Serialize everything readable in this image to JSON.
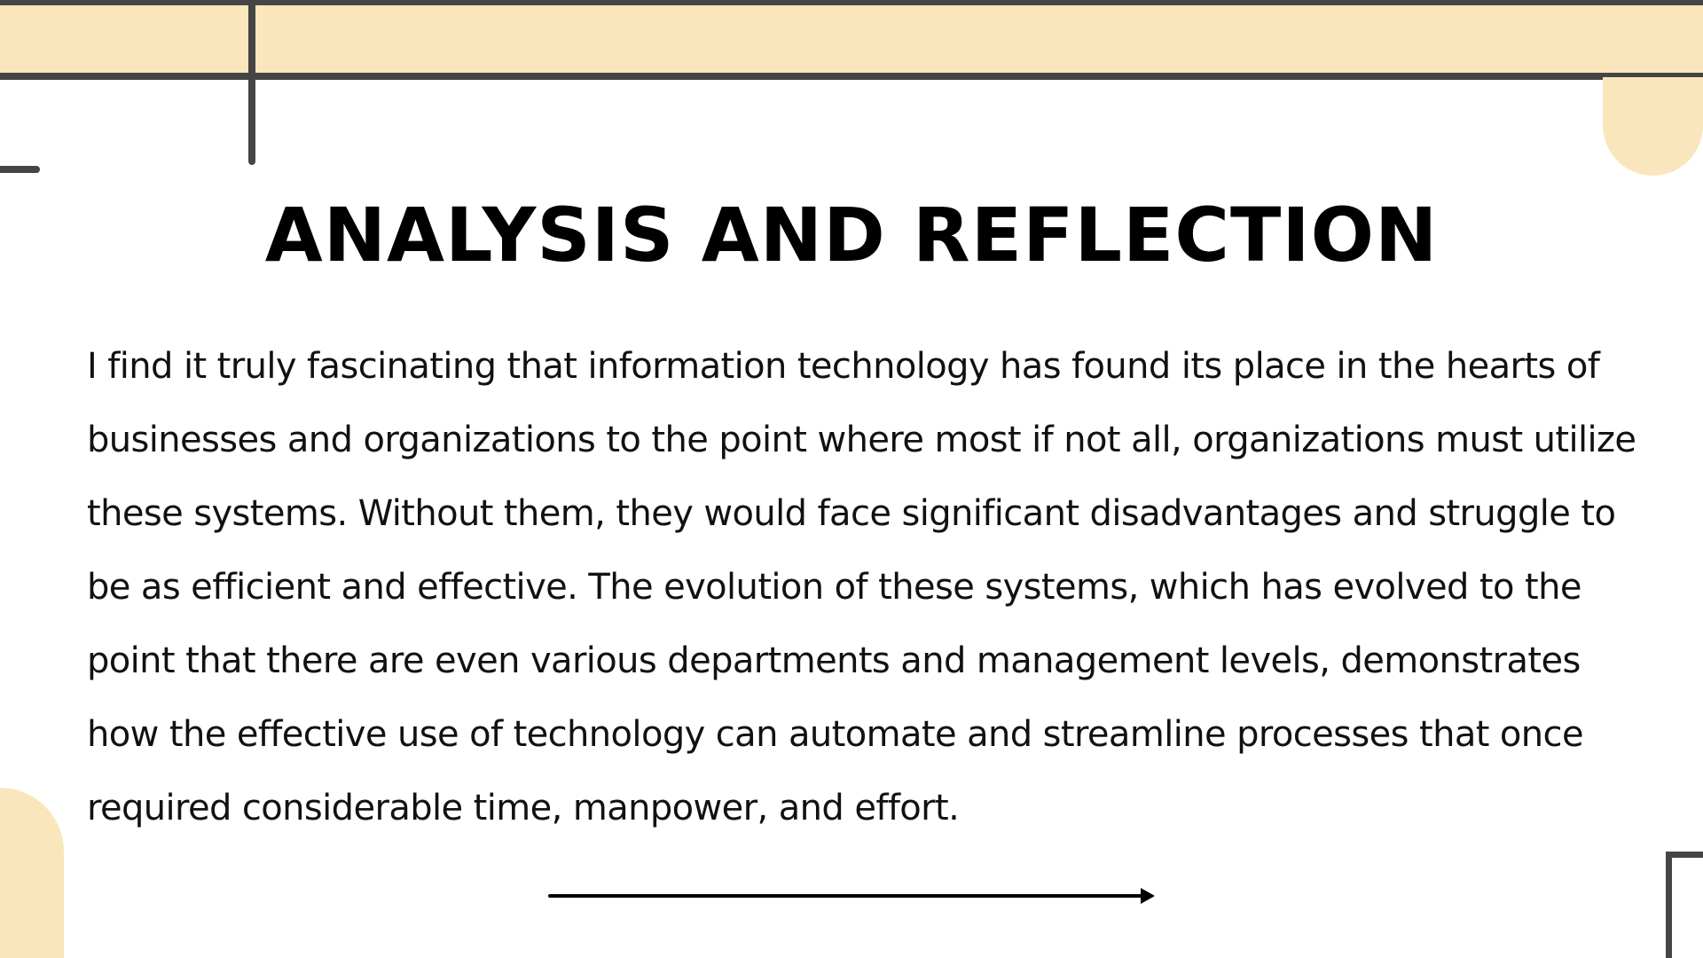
{
  "slide": {
    "title": "ANALYSIS AND REFLECTION",
    "body": "I find it truly fascinating that information technology has found its place in the hearts of businesses and organizations to the point where most if not all, organizations must utilize these systems. Without them, they would face significant disadvantages and struggle to be as efficient and effective. The evolution of these systems, which has evolved to the point that there are even various departments and management levels, demonstrates how the effective use of technology can automate and streamline processes that once required considerable time, manpower, and effort."
  },
  "colors": {
    "accent": "#fae6bc",
    "line": "#454545",
    "text": "#000000"
  },
  "icons": {
    "next": "arrow-right-icon"
  }
}
